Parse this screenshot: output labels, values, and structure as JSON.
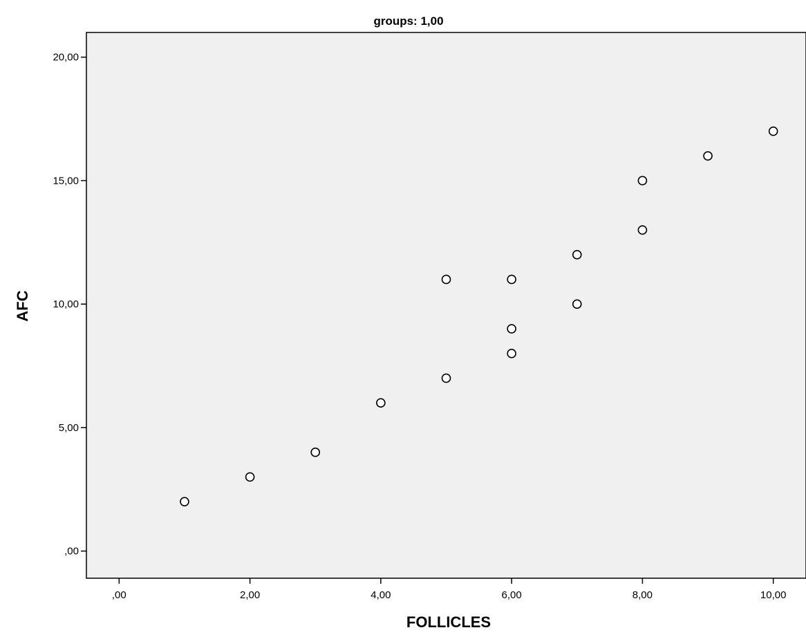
{
  "chart_data": {
    "type": "scatter",
    "title": "groups: 1,00",
    "xlabel": "FOLLICLES",
    "ylabel": "AFC",
    "xlim": [
      -0.5,
      10.5
    ],
    "ylim": [
      -1.1,
      21.0
    ],
    "x_ticks": [
      0,
      2,
      4,
      6,
      8,
      10
    ],
    "x_tick_labels": [
      ",00",
      "2,00",
      "4,00",
      "6,00",
      "8,00",
      "10,00"
    ],
    "y_ticks": [
      0,
      5,
      10,
      15,
      20
    ],
    "y_tick_labels": [
      ",00",
      "5,00",
      "10,00",
      "15,00",
      "20,00"
    ],
    "grid": false,
    "marker": "open-circle",
    "colors": {
      "plot_background": "#f0f0f0",
      "marker_edge": "#000000",
      "marker_fill": "#ffffff",
      "frame": "#000000"
    },
    "points": [
      {
        "x": 1,
        "y": 2
      },
      {
        "x": 2,
        "y": 3
      },
      {
        "x": 3,
        "y": 4
      },
      {
        "x": 4,
        "y": 6
      },
      {
        "x": 5,
        "y": 7
      },
      {
        "x": 5,
        "y": 11
      },
      {
        "x": 6,
        "y": 11
      },
      {
        "x": 6,
        "y": 9
      },
      {
        "x": 6,
        "y": 8
      },
      {
        "x": 7,
        "y": 12
      },
      {
        "x": 7,
        "y": 10
      },
      {
        "x": 8,
        "y": 15
      },
      {
        "x": 8,
        "y": 13
      },
      {
        "x": 9,
        "y": 16
      },
      {
        "x": 10,
        "y": 17
      }
    ]
  }
}
